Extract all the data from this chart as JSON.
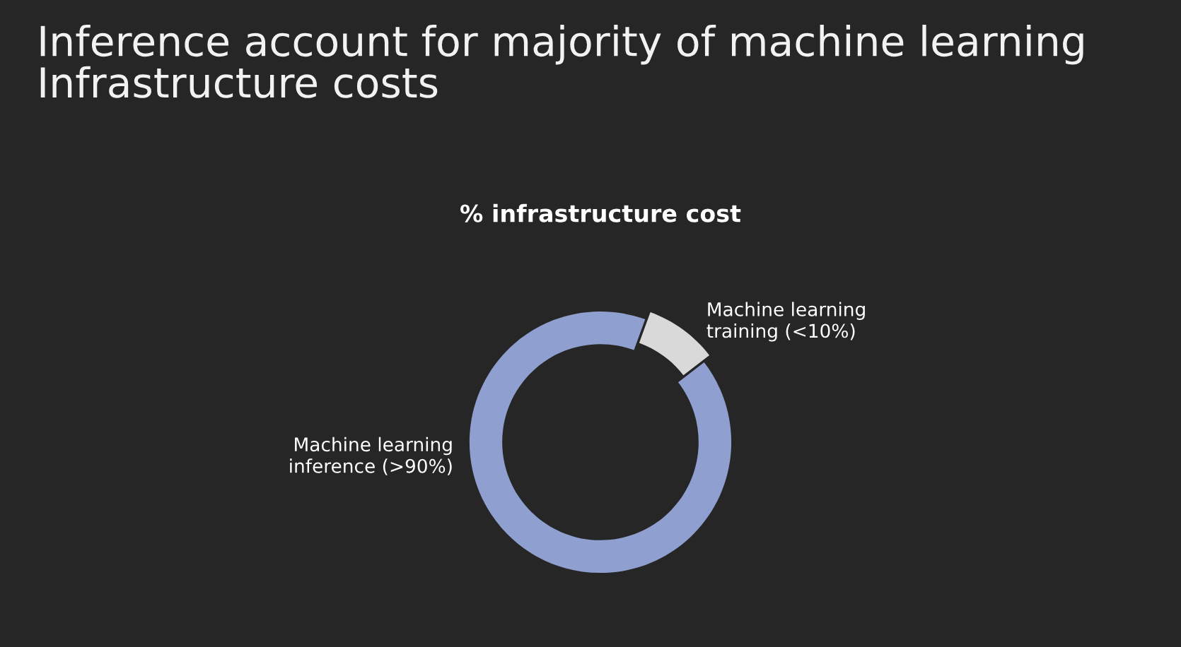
{
  "chart_data": {
    "type": "donut",
    "title": "Inference account for majority of machine learning Infrastructure costs",
    "subtitle": "% infrastructure cost",
    "categories": [
      "Machine learning training (<10%)",
      "Machine learning inference (>90%)"
    ],
    "values": [
      9,
      91
    ],
    "colors": [
      "#d9d9d9",
      "#8f9fcf"
    ]
  }
}
